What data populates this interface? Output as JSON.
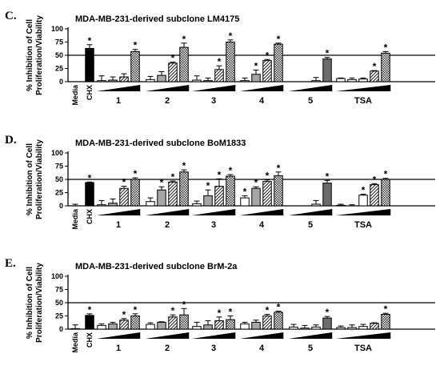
{
  "chart_data": [
    {
      "type": "bar",
      "panel_letter": "C.",
      "title": "MDA-MB-231-derived subclone LM4175",
      "ylabel_lines": [
        "% Inhibition of Cell",
        "Proliferation/Viability"
      ],
      "ylim": [
        0,
        100
      ],
      "yticks": [
        0,
        25,
        50,
        75,
        100
      ],
      "reference_line": 50,
      "control_labels": [
        "Media",
        "CHX"
      ],
      "groups": [
        "1",
        "2",
        "3",
        "4",
        "5",
        "TSA"
      ],
      "controls": [
        {
          "label": "Media",
          "value": 0,
          "error": 0,
          "star": false
        },
        {
          "label": "CHX",
          "value": 63,
          "error": 7,
          "star": true
        }
      ],
      "group_values": [
        [
          2,
          3,
          9,
          57
        ],
        [
          4,
          12,
          35,
          65
        ],
        [
          3,
          2,
          23,
          75
        ],
        [
          2,
          14,
          40,
          71
        ],
        [
          0,
          0,
          2,
          43
        ],
        [
          6,
          4,
          5,
          20,
          54
        ]
      ],
      "group_errors": [
        [
          9,
          6,
          6,
          4
        ],
        [
          6,
          7,
          2,
          8
        ],
        [
          8,
          5,
          7,
          4
        ],
        [
          5,
          8,
          2,
          2
        ],
        [
          0,
          0,
          6,
          3
        ],
        [
          1,
          3,
          2,
          1,
          3
        ]
      ],
      "group_stars": [
        [
          false,
          false,
          false,
          true
        ],
        [
          false,
          false,
          true,
          true
        ],
        [
          false,
          false,
          true,
          true
        ],
        [
          false,
          true,
          true,
          true
        ],
        [
          false,
          false,
          false,
          true
        ],
        [
          false,
          false,
          false,
          true,
          true
        ]
      ]
    },
    {
      "type": "bar",
      "panel_letter": "D.",
      "title": "MDA-MB-231-derived subclone BoM1833",
      "ylabel_lines": [
        "% Inhibition of Cell",
        "Proliferation/Viability"
      ],
      "ylim": [
        0,
        100
      ],
      "yticks": [
        0,
        25,
        50,
        75,
        100
      ],
      "reference_line": 50,
      "control_labels": [
        "Media",
        "CHX"
      ],
      "groups": [
        "1",
        "2",
        "3",
        "4",
        "5",
        "TSA"
      ],
      "controls": [
        {
          "label": "Media",
          "value": 0,
          "error": 3,
          "star": false
        },
        {
          "label": "CHX",
          "value": 44,
          "error": 1,
          "star": true
        }
      ],
      "group_values": [
        [
          2,
          5,
          33,
          50
        ],
        [
          8,
          30,
          45,
          64
        ],
        [
          4,
          19,
          37,
          56
        ],
        [
          15,
          33,
          46,
          57
        ],
        [
          0,
          0,
          3,
          43
        ],
        [
          1,
          0,
          20,
          40,
          50
        ]
      ],
      "group_errors": [
        [
          8,
          8,
          4,
          3
        ],
        [
          7,
          6,
          2,
          4
        ],
        [
          5,
          11,
          14,
          3
        ],
        [
          4,
          3,
          3,
          7
        ],
        [
          0,
          0,
          7,
          5
        ],
        [
          2,
          2,
          2,
          2,
          2
        ]
      ],
      "group_stars": [
        [
          false,
          false,
          true,
          true
        ],
        [
          false,
          true,
          true,
          true
        ],
        [
          false,
          true,
          true,
          true
        ],
        [
          true,
          true,
          true,
          true
        ],
        [
          false,
          false,
          false,
          true
        ],
        [
          false,
          false,
          true,
          true,
          true
        ]
      ]
    },
    {
      "type": "bar",
      "panel_letter": "E.",
      "title": "MDA-MB-231-derived subclone BrM-2a",
      "ylabel_lines": [
        "% Inhibition of Cell",
        "Proliferation/Viability"
      ],
      "ylim": [
        0,
        100
      ],
      "yticks": [
        0,
        25,
        50,
        75,
        100
      ],
      "reference_line": 50,
      "control_labels": [
        "Media",
        "CHX"
      ],
      "groups": [
        "1",
        "2",
        "3",
        "4",
        "5",
        "TSA"
      ],
      "controls": [
        {
          "label": "Media",
          "value": 1,
          "error": 7,
          "star": false
        },
        {
          "label": "CHX",
          "value": 26,
          "error": 3,
          "star": true
        }
      ],
      "group_values": [
        [
          7,
          10,
          17,
          25
        ],
        [
          9,
          13,
          23,
          27
        ],
        [
          5,
          8,
          16,
          18
        ],
        [
          10,
          13,
          25,
          32
        ],
        [
          4,
          2,
          4,
          21
        ],
        [
          3,
          3,
          5,
          11,
          28
        ]
      ],
      "group_errors": [
        [
          3,
          3,
          3,
          4
        ],
        [
          3,
          1,
          4,
          12
        ],
        [
          8,
          8,
          7,
          7
        ],
        [
          3,
          4,
          3,
          2
        ],
        [
          5,
          5,
          4,
          3
        ],
        [
          3,
          5,
          4,
          1,
          2
        ]
      ],
      "group_stars": [
        [
          false,
          false,
          true,
          true
        ],
        [
          false,
          false,
          true,
          true
        ],
        [
          false,
          false,
          true,
          true
        ],
        [
          false,
          false,
          true,
          true
        ],
        [
          false,
          false,
          false,
          true
        ],
        [
          false,
          false,
          false,
          false,
          true
        ]
      ]
    }
  ]
}
